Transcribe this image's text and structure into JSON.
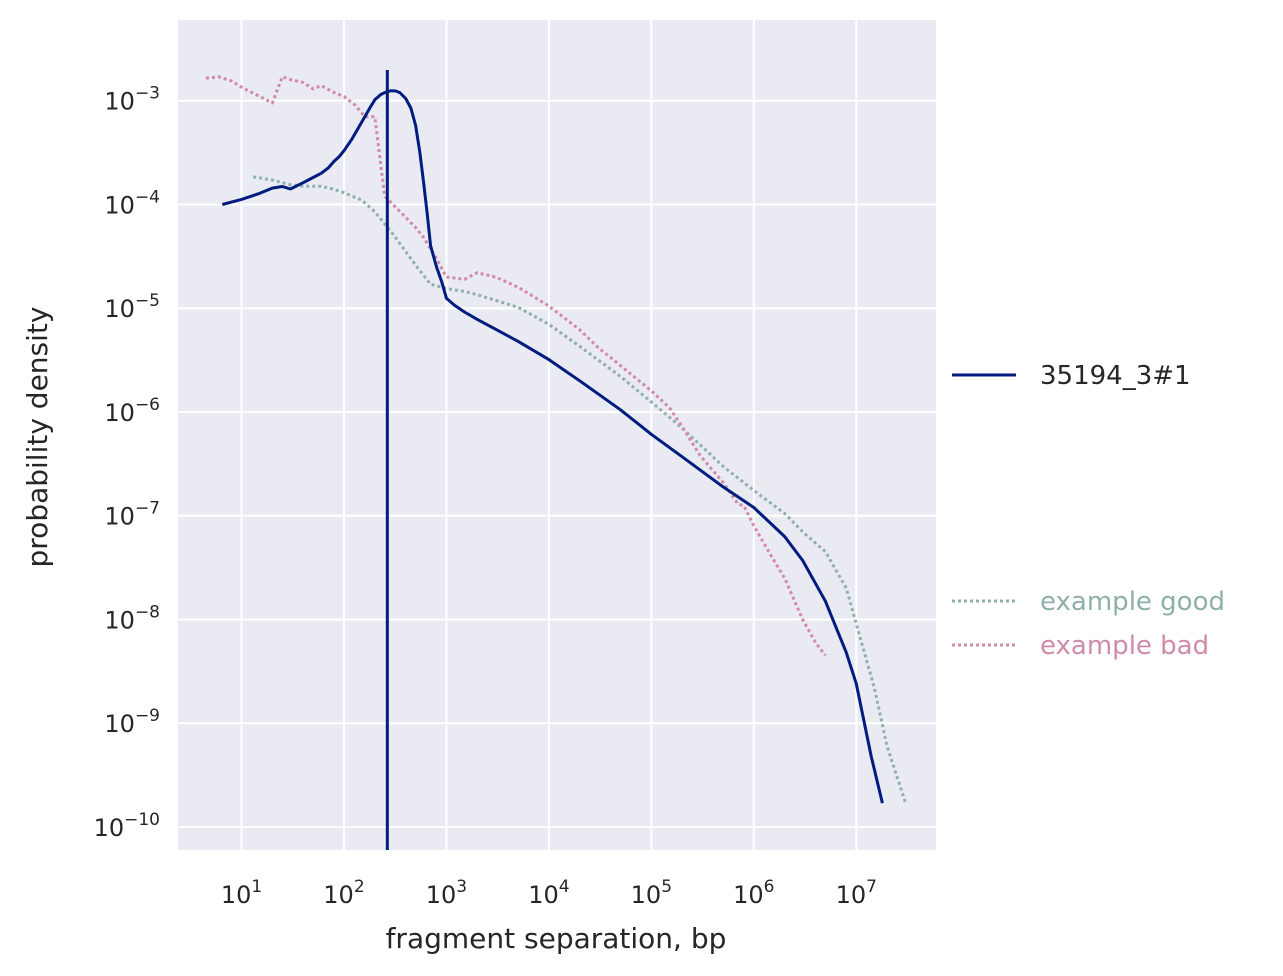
{
  "chart_data": {
    "type": "line",
    "title": "",
    "xlabel": "fragment separation, bp",
    "ylabel": "probability density",
    "xscale": "log",
    "yscale": "log",
    "xlim": [
      2.4,
      60000000
    ],
    "ylim": [
      6e-11,
      0.006
    ],
    "xticks": [
      {
        "base": "10",
        "exp": "1",
        "value": 10
      },
      {
        "base": "10",
        "exp": "2",
        "value": 100
      },
      {
        "base": "10",
        "exp": "3",
        "value": 1000
      },
      {
        "base": "10",
        "exp": "4",
        "value": 10000
      },
      {
        "base": "10",
        "exp": "5",
        "value": 100000
      },
      {
        "base": "10",
        "exp": "6",
        "value": 1000000
      },
      {
        "base": "10",
        "exp": "7",
        "value": 10000000
      }
    ],
    "yticks": [
      {
        "base": "10",
        "exp": "−3",
        "value": 0.001
      },
      {
        "base": "10",
        "exp": "−4",
        "value": 0.0001
      },
      {
        "base": "10",
        "exp": "−5",
        "value": 1e-05
      },
      {
        "base": "10",
        "exp": "−6",
        "value": 1e-06
      },
      {
        "base": "10",
        "exp": "−7",
        "value": 1e-07
      },
      {
        "base": "10",
        "exp": "−8",
        "value": 1e-08
      },
      {
        "base": "10",
        "exp": "−9",
        "value": 1e-09
      },
      {
        "base": "10",
        "exp": "−10",
        "value": 1e-10
      }
    ],
    "grid": true,
    "legend_placement": "right",
    "vline": {
      "x": 265,
      "color": "#001c7f"
    },
    "series": [
      {
        "name": "35194_3#1",
        "color": "#001c7f",
        "style": "solid",
        "x": [
          6.5,
          10,
          15,
          20,
          25,
          30,
          40,
          50,
          60,
          70,
          80,
          90,
          100,
          120,
          150,
          180,
          200,
          230,
          260,
          290,
          320,
          350,
          400,
          450,
          500,
          550,
          600,
          650,
          700,
          800,
          900,
          1000,
          1200,
          1500,
          2000,
          3000,
          5000,
          10000,
          20000,
          50000,
          100000,
          200000,
          500000,
          1000000,
          2000000,
          3000000,
          5000000,
          8000000,
          10000000,
          14000000,
          18000000
        ],
        "y": [
          0.0001,
          0.000112,
          0.000128,
          0.000144,
          0.000149,
          0.000141,
          0.000162,
          0.000182,
          0.0002,
          0.000224,
          0.00026,
          0.00029,
          0.00033,
          0.00043,
          0.00063,
          0.00086,
          0.00102,
          0.00115,
          0.00122,
          0.00125,
          0.00124,
          0.0012,
          0.00105,
          0.00085,
          0.00058,
          0.00032,
          0.00016,
          8e-05,
          4e-05,
          2.5e-05,
          1.8e-05,
          1.25e-05,
          1.07e-05,
          9.2e-06,
          7.8e-06,
          6.3e-06,
          4.8e-06,
          3.2e-06,
          2e-06,
          1.05e-06,
          6.1e-07,
          3.7e-07,
          1.9e-07,
          1.2e-07,
          6.3e-08,
          3.7e-08,
          1.5e-08,
          4.8e-09,
          2.4e-09,
          4.8e-10,
          1.7e-10
        ]
      },
      {
        "name": "example good",
        "color": "#8fb0aa",
        "style": "dotted",
        "x": [
          13,
          20,
          30,
          40,
          60,
          80,
          100,
          150,
          200,
          300,
          500,
          700,
          1000,
          1500,
          2000,
          5000,
          10000,
          20000,
          50000,
          100000,
          200000,
          500000,
          1000000,
          2000000,
          3000000,
          5000000,
          8000000,
          11000000,
          15000000,
          20000000,
          30000000
        ],
        "y": [
          0.000185,
          0.000172,
          0.000155,
          0.00015,
          0.00015,
          0.00014,
          0.00013,
          0.00011,
          8.5e-05,
          5.2e-05,
          2.6e-05,
          1.7e-05,
          1.55e-05,
          1.45e-05,
          1.35e-05,
          1.02e-05,
          7e-06,
          4.3e-06,
          2.2e-06,
          1.25e-06,
          7e-07,
          3e-07,
          1.75e-07,
          1.05e-07,
          7e-08,
          4.5e-08,
          2e-08,
          6.5e-09,
          2.2e-09,
          6e-10,
          1.75e-10
        ]
      },
      {
        "name": "example bad",
        "color": "#d18aa9",
        "style": "dotted",
        "x": [
          4.5,
          6,
          8,
          10,
          15,
          20,
          25,
          30,
          40,
          50,
          60,
          80,
          100,
          130,
          160,
          200,
          250,
          300,
          400,
          500,
          600,
          800,
          1000,
          1500,
          2000,
          3000,
          5000,
          8000,
          10000,
          20000,
          30000,
          50000,
          100000,
          150000,
          200000,
          300000,
          500000,
          700000,
          800000,
          1000000,
          1500000,
          2000000,
          3000000,
          4000000,
          5000000
        ],
        "y": [
          0.00165,
          0.0017,
          0.00155,
          0.00135,
          0.0011,
          0.00095,
          0.0017,
          0.0016,
          0.0015,
          0.0013,
          0.0014,
          0.0012,
          0.0011,
          0.0009,
          0.0007,
          0.0007,
          0.00012,
          0.0001,
          7.5e-05,
          6e-05,
          4.8e-05,
          3e-05,
          2e-05,
          1.9e-05,
          2.2e-05,
          2e-05,
          1.6e-05,
          1.2e-05,
          1.05e-05,
          6.2e-06,
          4.2e-06,
          2.8e-06,
          1.6e-06,
          1.1e-06,
          7.2e-07,
          3.8e-07,
          2.1e-07,
          1.3e-07,
          1.25e-07,
          8e-08,
          4e-08,
          2.5e-08,
          1e-08,
          6e-09,
          4.5e-09
        ]
      }
    ]
  }
}
